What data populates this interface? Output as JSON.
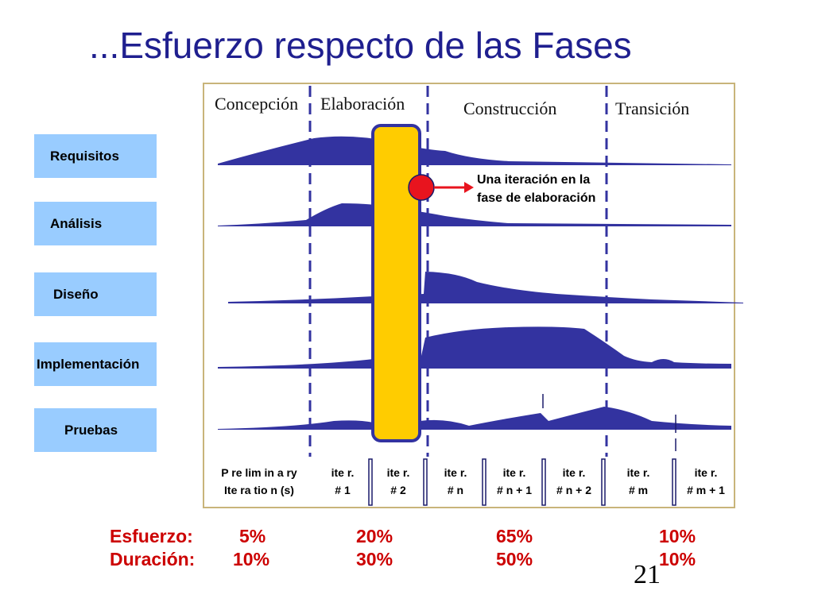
{
  "title": "...Esfuerzo respecto de las Fases",
  "workflows": [
    "Requisitos",
    "Análisis",
    "Diseño",
    "Implementación",
    "Pruebas"
  ],
  "phases": [
    "Concepción",
    "Elaboración",
    "Construcción",
    "Transición"
  ],
  "iterations": [
    {
      "line1": "P re lim in a ry",
      "line2": "Ite ra tio n (s)"
    },
    {
      "line1": "ite r.",
      "line2": "# 1"
    },
    {
      "line1": "ite r.",
      "line2": "# 2"
    },
    {
      "line1": "ite r.",
      "line2": "# n"
    },
    {
      "line1": "ite r.",
      "line2": "# n + 1"
    },
    {
      "line1": "ite r.",
      "line2": "# n + 2"
    },
    {
      "line1": "ite r.",
      "line2": "# m"
    },
    {
      "line1": "ite r.",
      "line2": "# m + 1"
    }
  ],
  "callout": {
    "line1": "Una iteración en la",
    "line2": "fase de elaboración"
  },
  "effort": {
    "label": "Esfuerzo:",
    "values": [
      "5%",
      "20%",
      "65%",
      "10%"
    ]
  },
  "duration": {
    "label": "Duración:",
    "values": [
      "10%",
      "30%",
      "50%",
      "10%"
    ]
  },
  "page_number": "21",
  "colors": {
    "title": "#1f1f8f",
    "curve": "#3333a0",
    "workflow_box": "#99ccff",
    "highlight_bar": "#ffcc00",
    "highlight_border": "#3333a0",
    "marker": "#e8141e",
    "summary_text": "#cc0000"
  }
}
